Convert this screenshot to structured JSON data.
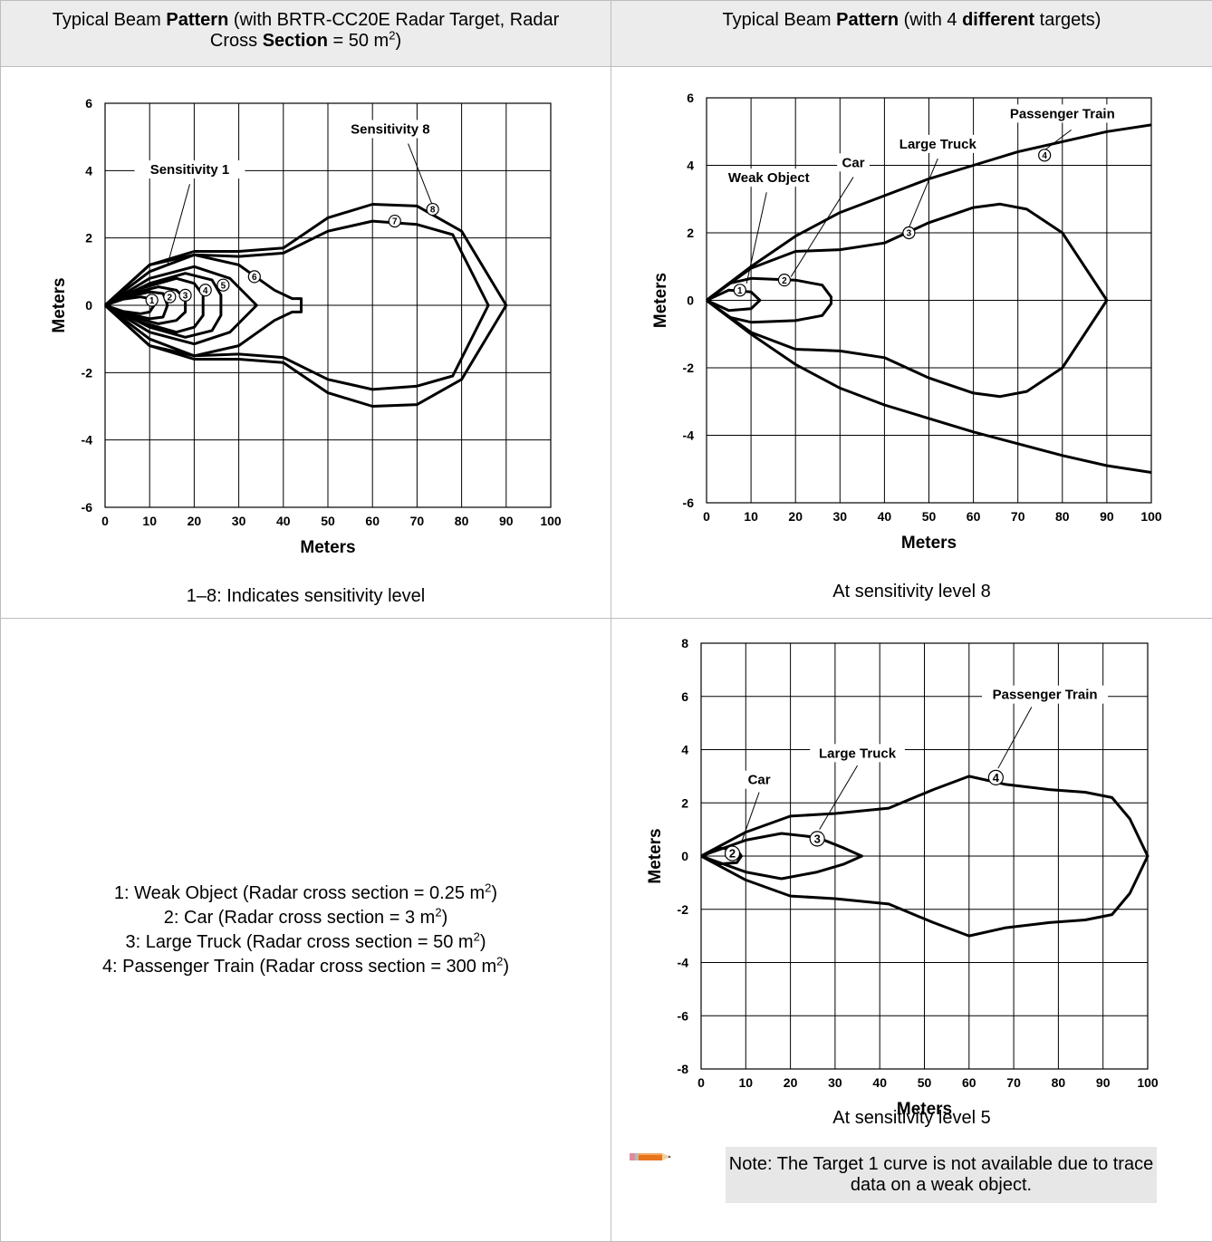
{
  "header": {
    "left_pre": "Typical Beam ",
    "left_bold1": "Pattern",
    "left_mid": " (with BRTR-CC20E Radar Target, Radar Cross ",
    "left_bold2": "Section",
    "left_post": " = 50 m",
    "left_sup": "2",
    "left_end": ")",
    "right_pre": "Typical Beam ",
    "right_bold1": "Pattern",
    "right_mid": " (with 4 ",
    "right_bold2": "different",
    "right_post": " targets)"
  },
  "captions": {
    "chart1": "1–8: Indicates sensitivity level",
    "chart2": "At sensitivity level 8",
    "chart3": "At sensitivity level 5"
  },
  "legend": [
    {
      "text": "1: Weak Object (Radar cross section = 0.25 m",
      "sup": "2",
      "end": ")"
    },
    {
      "text": "2: Car (Radar cross section = 3 m",
      "sup": "2",
      "end": ")"
    },
    {
      "text": "3: Large Truck (Radar cross section = 50 m",
      "sup": "2",
      "end": ")"
    },
    {
      "text": "4: Passenger Train (Radar cross section = 300 m",
      "sup": "2",
      "end": ")"
    }
  ],
  "note": "Note: The Target 1 curve is not available due to trace data on a weak object.",
  "chart_data": [
    {
      "type": "line",
      "xlabel": "Meters",
      "ylabel": "Meters",
      "xlim": [
        0,
        100
      ],
      "ylim": [
        -6,
        6
      ],
      "xticks": [
        0,
        10,
        20,
        30,
        40,
        50,
        60,
        70,
        80,
        90,
        100
      ],
      "yticks": [
        -6,
        -4,
        -2,
        0,
        2,
        4,
        6
      ],
      "grid": true,
      "annotations": [
        {
          "text": "Sensitivity 1"
        },
        {
          "text": "Sensitivity 8"
        }
      ],
      "series": [
        {
          "name": "1",
          "x": [
            0,
            4,
            8,
            10,
            11,
            10,
            8,
            4,
            0
          ],
          "y": [
            0,
            0.18,
            0.25,
            0.2,
            0,
            -0.2,
            -0.25,
            -0.18,
            0
          ]
        },
        {
          "name": "2",
          "x": [
            0,
            5,
            10,
            13,
            14,
            13,
            10,
            5,
            0
          ],
          "y": [
            0,
            0.25,
            0.4,
            0.35,
            0,
            -0.35,
            -0.4,
            -0.25,
            0
          ]
        },
        {
          "name": "3",
          "x": [
            0,
            6,
            12,
            16,
            18,
            18,
            16,
            12,
            6,
            0
          ],
          "y": [
            0,
            0.35,
            0.55,
            0.45,
            0.2,
            -0.2,
            -0.45,
            -0.55,
            -0.35,
            0
          ]
        },
        {
          "name": "4",
          "x": [
            0,
            8,
            16,
            20,
            22,
            22,
            20,
            16,
            8,
            0
          ],
          "y": [
            0,
            0.5,
            0.8,
            0.65,
            0.3,
            -0.3,
            -0.65,
            -0.8,
            -0.5,
            0
          ]
        },
        {
          "name": "5",
          "x": [
            0,
            10,
            18,
            24,
            26,
            26,
            24,
            18,
            10,
            0
          ],
          "y": [
            0,
            0.65,
            0.95,
            0.75,
            0.3,
            -0.3,
            -0.75,
            -0.95,
            -0.65,
            0
          ]
        },
        {
          "name": "6",
          "x": [
            0,
            10,
            20,
            28,
            34,
            28,
            20,
            10,
            0
          ],
          "y": [
            0,
            0.8,
            1.15,
            0.8,
            0,
            -0.8,
            -1.15,
            -0.8,
            0
          ]
        },
        {
          "name": "7",
          "x": [
            0,
            10,
            20,
            30,
            38,
            42,
            44,
            44,
            42,
            38,
            30,
            20,
            10,
            0
          ],
          "y": [
            0,
            1.0,
            1.5,
            1.2,
            0.45,
            0.2,
            0.2,
            -0.2,
            -0.2,
            -0.45,
            -1.2,
            -1.5,
            -1.0,
            0
          ]
        },
        {
          "name": "8 (inner)",
          "x": [
            0,
            10,
            20,
            30,
            40,
            50,
            60,
            70,
            78,
            86,
            78,
            70,
            60,
            50,
            40,
            30,
            20,
            10,
            0
          ],
          "y": [
            0,
            1.2,
            1.5,
            1.45,
            1.55,
            2.2,
            2.5,
            2.4,
            2.1,
            0,
            -2.1,
            -2.4,
            -2.5,
            -2.2,
            -1.55,
            -1.45,
            -1.5,
            -1.2,
            0
          ]
        },
        {
          "name": "8 (outer)",
          "x": [
            0,
            10,
            20,
            30,
            40,
            50,
            60,
            70,
            80,
            90,
            80,
            70,
            60,
            50,
            40,
            30,
            20,
            10,
            0
          ],
          "y": [
            0,
            1.2,
            1.6,
            1.6,
            1.7,
            2.6,
            3.0,
            2.95,
            2.2,
            0,
            -2.2,
            -2.95,
            -3.0,
            -2.6,
            -1.7,
            -1.6,
            -1.6,
            -1.2,
            0
          ]
        }
      ]
    },
    {
      "type": "line",
      "xlabel": "Meters",
      "ylabel": "Meters",
      "xlim": [
        0,
        100
      ],
      "ylim": [
        -6,
        6
      ],
      "xticks": [
        0,
        10,
        20,
        30,
        40,
        50,
        60,
        70,
        80,
        90,
        100
      ],
      "yticks": [
        -6,
        -4,
        -2,
        0,
        2,
        4,
        6
      ],
      "grid": true,
      "annotations": [
        {
          "text": "Weak Object"
        },
        {
          "text": "Car"
        },
        {
          "text": "Large Truck"
        },
        {
          "text": "Passenger Train"
        }
      ],
      "series": [
        {
          "name": "1",
          "x": [
            0,
            5,
            10,
            12,
            10,
            5,
            0
          ],
          "y": [
            0,
            0.3,
            0.25,
            0,
            -0.25,
            -0.3,
            0
          ]
        },
        {
          "name": "2",
          "x": [
            0,
            5,
            10,
            20,
            26,
            28,
            28,
            26,
            20,
            10,
            5,
            0
          ],
          "y": [
            0,
            0.5,
            0.65,
            0.6,
            0.45,
            0.1,
            -0.1,
            -0.45,
            -0.6,
            -0.65,
            -0.5,
            0
          ]
        },
        {
          "name": "3",
          "x": [
            0,
            10,
            20,
            30,
            40,
            50,
            60,
            66,
            72,
            80,
            90,
            80,
            72,
            66,
            60,
            50,
            40,
            30,
            20,
            10,
            0
          ],
          "y": [
            0,
            0.95,
            1.45,
            1.5,
            1.7,
            2.3,
            2.75,
            2.85,
            2.7,
            2.0,
            0,
            -2.0,
            -2.7,
            -2.85,
            -2.75,
            -2.3,
            -1.7,
            -1.5,
            -1.45,
            -0.95,
            0
          ]
        },
        {
          "name": "4",
          "x": [
            0,
            10,
            20,
            30,
            40,
            50,
            60,
            70,
            80,
            90,
            100
          ],
          "y": [
            0,
            1.0,
            1.9,
            2.6,
            3.1,
            3.6,
            4.0,
            4.4,
            4.7,
            5.0,
            5.2
          ]
        },
        {
          "name": "4 (lower)",
          "x": [
            0,
            10,
            20,
            30,
            40,
            50,
            60,
            70,
            80,
            90,
            100
          ],
          "y": [
            0,
            -1.0,
            -1.9,
            -2.6,
            -3.1,
            -3.5,
            -3.9,
            -4.25,
            -4.6,
            -4.9,
            -5.1
          ]
        }
      ]
    },
    {
      "type": "line",
      "xlabel": "Meters",
      "ylabel": "Meters",
      "xlim": [
        0,
        100
      ],
      "ylim": [
        -8,
        8
      ],
      "xticks": [
        0,
        10,
        20,
        30,
        40,
        50,
        60,
        70,
        80,
        90,
        100
      ],
      "yticks": [
        -8,
        -6,
        -4,
        -2,
        0,
        2,
        4,
        6,
        8
      ],
      "grid": true,
      "annotations": [
        {
          "text": "Car"
        },
        {
          "text": "Large Truck"
        },
        {
          "text": "Passenger Train"
        }
      ],
      "series": [
        {
          "name": "2",
          "x": [
            0,
            4,
            8,
            9,
            8,
            4,
            0
          ],
          "y": [
            0,
            0.3,
            0.25,
            0,
            -0.25,
            -0.3,
            0
          ]
        },
        {
          "name": "3",
          "x": [
            0,
            10,
            18,
            26,
            32,
            36,
            32,
            26,
            18,
            10,
            0
          ],
          "y": [
            0,
            0.6,
            0.85,
            0.7,
            0.3,
            0,
            -0.3,
            -0.6,
            -0.85,
            -0.6,
            0
          ]
        },
        {
          "name": "4",
          "x": [
            0,
            10,
            20,
            30,
            42,
            52,
            60,
            68,
            78,
            86,
            92,
            96,
            100,
            96,
            92,
            86,
            78,
            68,
            60,
            52,
            42,
            30,
            20,
            10,
            0
          ],
          "y": [
            0,
            0.9,
            1.5,
            1.6,
            1.8,
            2.5,
            3.0,
            2.7,
            2.5,
            2.4,
            2.2,
            1.4,
            0,
            -1.4,
            -2.2,
            -2.4,
            -2.5,
            -2.7,
            -3.0,
            -2.5,
            -1.8,
            -1.6,
            -1.5,
            -0.9,
            0
          ]
        }
      ]
    }
  ]
}
